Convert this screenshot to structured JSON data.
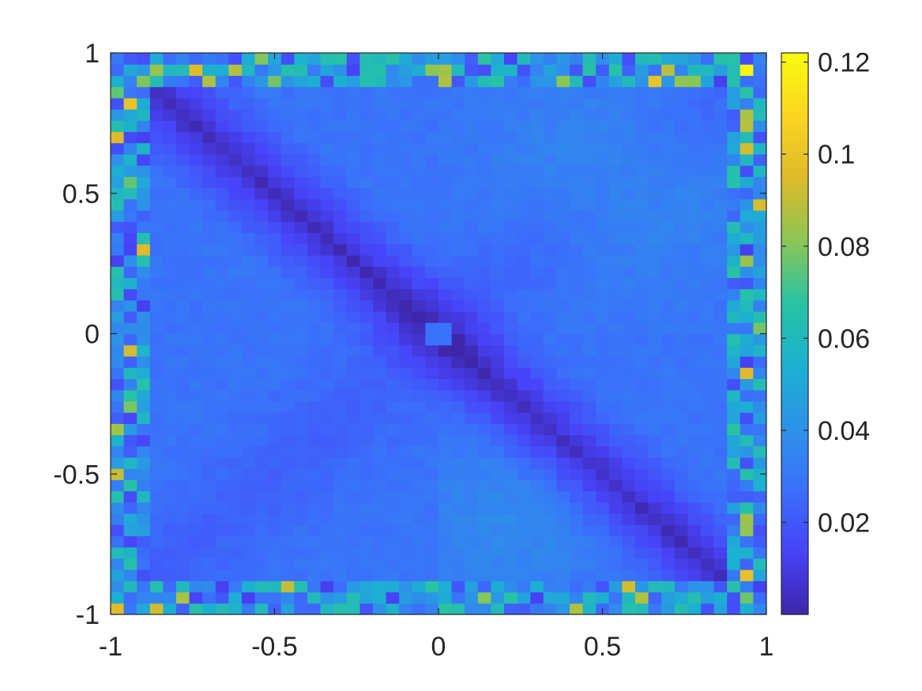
{
  "chart_data": {
    "type": "heatmap",
    "title": "",
    "xlabel": "",
    "ylabel": "",
    "xlim": [
      -1,
      1
    ],
    "ylim": [
      -1,
      1
    ],
    "grid": false,
    "colormap": "parula",
    "grid_resolution": [
      50,
      50
    ],
    "clim": [
      0,
      0.122
    ],
    "colormap_stops": [
      "#3e26a8",
      "#4743f8",
      "#3b6ffb",
      "#2d92e8",
      "#1cb0d1",
      "#29c3a2",
      "#8bc655",
      "#dfbb2b",
      "#fbd521",
      "#f9fb0e"
    ],
    "colorbar_ticks": [
      0.02,
      0.04,
      0.06,
      0.08,
      0.1,
      0.12
    ],
    "colorbar_tick_labels": [
      "0.02",
      "0.04",
      "0.06",
      "0.08",
      "0.1",
      "0.12"
    ],
    "x_ticks": [
      -1,
      -0.5,
      0,
      0.5,
      1
    ],
    "x_tick_labels": [
      "-1",
      "-0.5",
      "0",
      "0.5",
      "1"
    ],
    "y_ticks": [
      -1,
      -0.5,
      0,
      0.5,
      1
    ],
    "y_tick_labels": [
      "-1",
      "-0.5",
      "0",
      "0.5",
      "1"
    ],
    "description_values": {
      "diagonal_minimum": 0.003,
      "interior_typical": 0.025,
      "upper_right_lobe": 0.035,
      "edge_typical": 0.04,
      "max_value": 0.12,
      "max_location": [
        0.95,
        0.95
      ]
    }
  }
}
